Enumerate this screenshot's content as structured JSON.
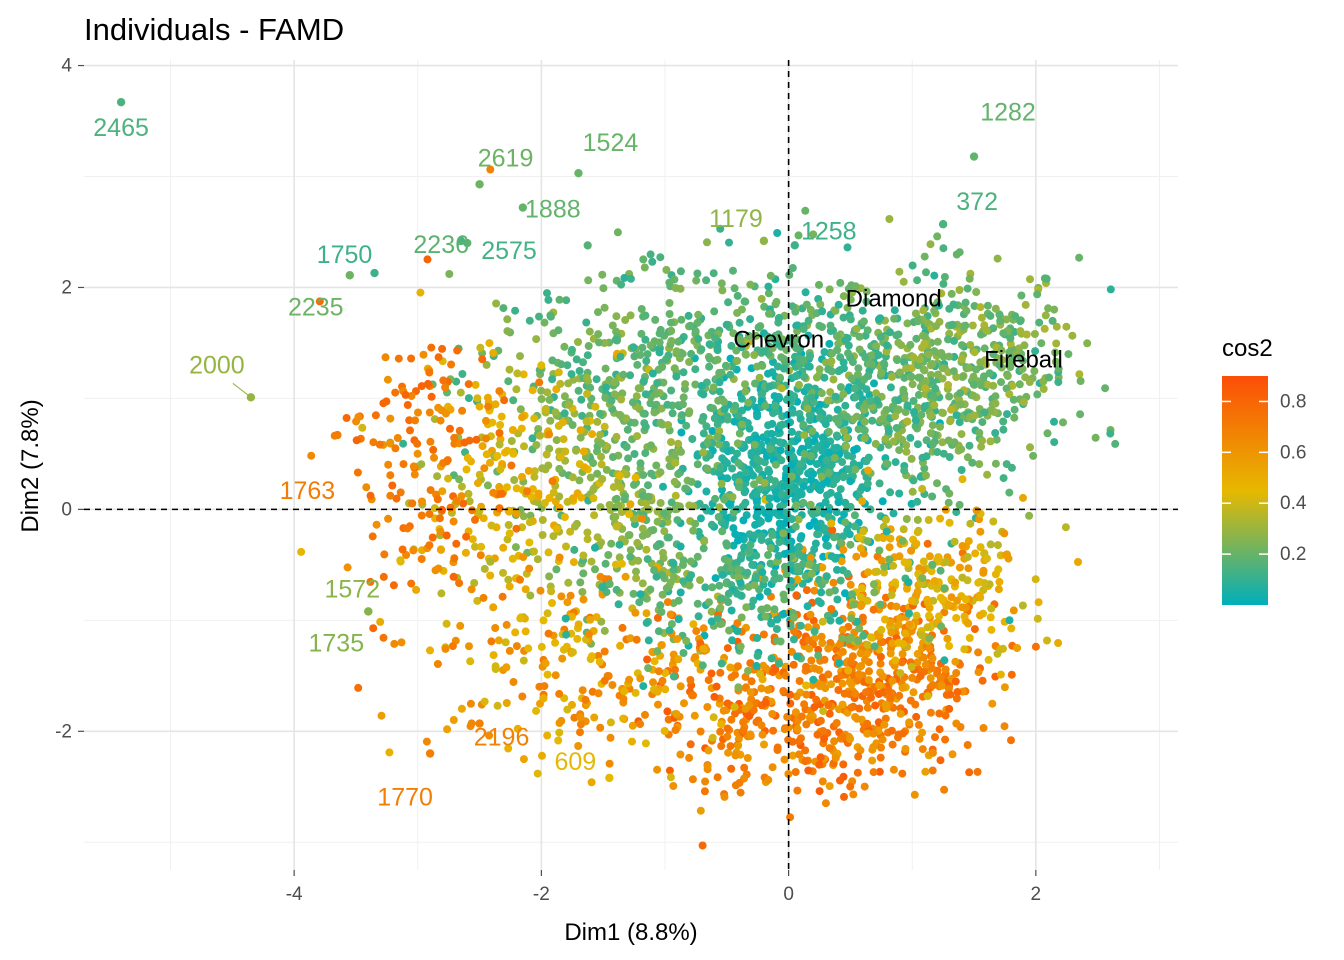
{
  "chart_data": {
    "type": "scatter",
    "title": "Individuals - FAMD",
    "xlabel": "Dim1 (8.8%)",
    "ylabel": "Dim2 (7.8%)",
    "xlim": [
      -5.7,
      3.15
    ],
    "ylim": [
      -3.25,
      4.05
    ],
    "x_ticks": [
      -4,
      -2,
      0,
      2
    ],
    "y_ticks": [
      -2,
      0,
      2,
      4
    ],
    "x_tick_labels": [
      "-4",
      "-2",
      "0",
      "2"
    ],
    "y_tick_labels": [
      "-2",
      "0",
      "2",
      "4"
    ],
    "reference_lines": {
      "x": 0,
      "y": 0
    },
    "grid": true,
    "colors": {
      "low": "#00AFBB",
      "mid": "#E7B800",
      "high": "#FC4E07"
    },
    "legend": {
      "title": "cos2",
      "placement": "right",
      "range": [
        0,
        0.9
      ],
      "ticks": [
        0.2,
        0.4,
        0.6,
        0.8
      ],
      "tick_labels": [
        "0.2",
        "0.4",
        "0.6",
        "0.8"
      ]
    },
    "labeled_points": [
      {
        "label": "2465",
        "x": -5.4,
        "y": 3.67,
        "cos2": 0.15
      },
      {
        "label": "1282",
        "x": 1.5,
        "y": 3.18,
        "cos2": 0.19
      },
      {
        "label": "2619",
        "x": -2.5,
        "y": 2.93,
        "cos2": 0.21
      },
      {
        "label": "1524",
        "x": -1.7,
        "y": 3.03,
        "cos2": 0.2
      },
      {
        "label": "372",
        "x": 1.25,
        "y": 2.57,
        "cos2": 0.15
      },
      {
        "label": "2236",
        "x": -2.6,
        "y": 2.4,
        "cos2": 0.18
      },
      {
        "label": "1888",
        "x": -2.15,
        "y": 2.72,
        "cos2": 0.19
      },
      {
        "label": "1179",
        "x": -0.2,
        "y": 2.42,
        "cos2": 0.28
      },
      {
        "label": "1258",
        "x": 0.05,
        "y": 2.38,
        "cos2": 0.12
      },
      {
        "label": "1750",
        "x": -3.35,
        "y": 2.13,
        "cos2": 0.12
      },
      {
        "label": "2575",
        "x": -2.65,
        "y": 2.42,
        "cos2": 0.13
      },
      {
        "label": "2235",
        "x": -3.55,
        "y": 2.11,
        "cos2": 0.21
      },
      {
        "label": "2000",
        "x": -4.35,
        "y": 1.01,
        "cos2": 0.29
      },
      {
        "label": "1763",
        "x": -3.65,
        "y": 0.67,
        "cos2": 0.7
      },
      {
        "label": "1572",
        "x": -3.4,
        "y": -0.92,
        "cos2": 0.27
      },
      {
        "label": "1735",
        "x": -3.4,
        "y": -0.92,
        "cos2": 0.26
      },
      {
        "label": "2196",
        "x": -2.5,
        "y": -1.93,
        "cos2": 0.68
      },
      {
        "label": "1770",
        "x": -2.9,
        "y": -2.2,
        "cos2": 0.69
      },
      {
        "label": "609",
        "x": -1.45,
        "y": -2.42,
        "cos2": 0.45
      }
    ],
    "category_labels": [
      {
        "label": "Diamond",
        "x": 0.85,
        "y": 1.9
      },
      {
        "label": "Chevron",
        "x": -0.08,
        "y": 1.53
      },
      {
        "label": "Fireball",
        "x": 1.9,
        "y": 1.35
      }
    ],
    "point_clusters": [
      {
        "name": "origin",
        "cx": 0.0,
        "cy": 0.35,
        "sx": 0.38,
        "sy": 0.55,
        "n": 700,
        "cos2": [
          0.0,
          0.12
        ]
      },
      {
        "name": "upper-right",
        "cx": 1.0,
        "cy": 1.05,
        "sx": 0.55,
        "sy": 0.5,
        "n": 500,
        "cos2": [
          0.08,
          0.3
        ]
      },
      {
        "name": "upper-right-outer",
        "cx": 1.6,
        "cy": 1.4,
        "sx": 0.4,
        "sy": 0.35,
        "n": 180,
        "cos2": [
          0.15,
          0.35
        ]
      },
      {
        "name": "upper-left",
        "cx": -1.3,
        "cy": 1.1,
        "sx": 0.6,
        "sy": 0.5,
        "n": 320,
        "cos2": [
          0.1,
          0.3
        ]
      },
      {
        "name": "left-inner",
        "cx": -1.2,
        "cy": 0.0,
        "sx": 0.45,
        "sy": 0.55,
        "n": 250,
        "cos2": [
          0.15,
          0.35
        ]
      },
      {
        "name": "left-mid",
        "cx": -2.2,
        "cy": 0.25,
        "sx": 0.45,
        "sy": 0.65,
        "n": 240,
        "cos2": [
          0.3,
          0.55
        ]
      },
      {
        "name": "left-outer",
        "cx": -2.9,
        "cy": 0.45,
        "sx": 0.35,
        "sy": 0.7,
        "n": 160,
        "cos2": [
          0.6,
          0.82
        ]
      },
      {
        "name": "lower-center",
        "cx": -0.15,
        "cy": -1.75,
        "sx": 0.6,
        "sy": 0.45,
        "n": 380,
        "cos2": [
          0.55,
          0.85
        ]
      },
      {
        "name": "lower-right",
        "cx": 0.85,
        "cy": -1.45,
        "sx": 0.45,
        "sy": 0.45,
        "n": 320,
        "cos2": [
          0.55,
          0.82
        ]
      },
      {
        "name": "right-mid",
        "cx": 1.15,
        "cy": -0.75,
        "sx": 0.4,
        "sy": 0.4,
        "n": 250,
        "cos2": [
          0.35,
          0.6
        ]
      },
      {
        "name": "lower-left",
        "cx": -1.6,
        "cy": -1.4,
        "sx": 0.6,
        "sy": 0.55,
        "n": 220,
        "cos2": [
          0.4,
          0.72
        ]
      },
      {
        "name": "upper-center",
        "cx": -0.3,
        "cy": 1.55,
        "sx": 0.7,
        "sy": 0.4,
        "n": 260,
        "cos2": [
          0.08,
          0.25
        ]
      },
      {
        "name": "center-spread",
        "cx": -0.3,
        "cy": -0.7,
        "sx": 0.7,
        "sy": 0.35,
        "n": 260,
        "cos2": [
          0.05,
          0.25
        ]
      }
    ]
  }
}
